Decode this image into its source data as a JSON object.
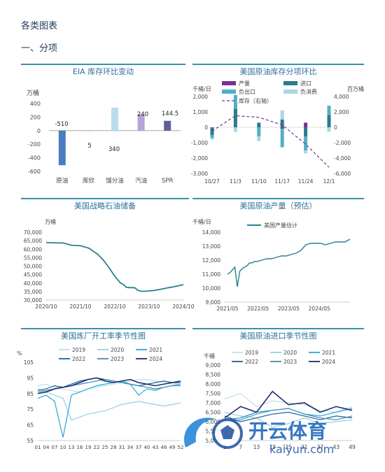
{
  "page": {
    "title": "各类图表",
    "section": "一、分项"
  },
  "colors": {
    "rule": "#3a8fb0",
    "title_text": "#2f6f9a",
    "axis_text": "#444444",
    "grid": "#dddddd"
  },
  "watermark": {
    "text_cn": "开云体育",
    "text_en": "kaiyun.com"
  },
  "chart_data": [
    {
      "id": "eia",
      "type": "bar",
      "title": "EIA 库存环比变动",
      "ylabel": "万桶",
      "ylim": [
        -600,
        400
      ],
      "yticks": [
        -600,
        -400,
        -200,
        0,
        200,
        400
      ],
      "categories": [
        "原油",
        "库欣",
        "馏分油",
        "汽油",
        "SPR"
      ],
      "values": [
        -510,
        5,
        340,
        240,
        144.5
      ],
      "data_labels": [
        "-510",
        "5",
        "340",
        "240",
        "144.5"
      ],
      "colors": [
        "#4a7cc2",
        "#7fb3cf",
        "#b9dced",
        "#b8a4d6",
        "#5f5f9a"
      ]
    },
    {
      "id": "us-crude-inventory",
      "type": "bar",
      "title": "美国原油库存分项环比",
      "ylabel_left": "千桶/日",
      "ylabel_right": "百万桶",
      "ylim": [
        -3000,
        2000
      ],
      "yticks": [
        -3000,
        -2000,
        -1000,
        0,
        1000,
        2000
      ],
      "ylim_right": [
        -6000,
        4000
      ],
      "yticks_right": [
        -6000,
        -4000,
        -2000,
        0,
        2000,
        4000
      ],
      "categories": [
        "10/27",
        "11/3",
        "11/10",
        "11/17",
        "11/24",
        "12/1"
      ],
      "legend": [
        "产量",
        "进口",
        "负出口",
        "负消费",
        "库存（右轴）"
      ],
      "series": [
        {
          "name": "产量",
          "color": "#7b2f8f",
          "values": [
            0,
            0,
            0,
            -100,
            300,
            0
          ]
        },
        {
          "name": "进口",
          "color": "#2c7a8c",
          "values": [
            -500,
            1200,
            300,
            500,
            -600,
            800
          ]
        },
        {
          "name": "负出口",
          "color": "#4fb0c8",
          "values": [
            -200,
            900,
            -600,
            -1200,
            -900,
            600
          ]
        },
        {
          "name": "负消费",
          "color": "#a9d7e6",
          "values": [
            -100,
            -300,
            -300,
            600,
            -200,
            -300
          ]
        }
      ],
      "line": {
        "name": "库存（右轴）",
        "color": "#7a2f9a",
        "values": [
          -500,
          1500,
          1300,
          300,
          -2200,
          -5200
        ]
      }
    },
    {
      "id": "spr",
      "type": "line",
      "title": "美国战略石油储备",
      "ylabel": "万桶",
      "ylim": [
        30000,
        70000
      ],
      "yticks": [
        30000,
        35000,
        40000,
        45000,
        50000,
        55000,
        60000,
        65000,
        70000
      ],
      "xticks": [
        "2020/10",
        "2021/10",
        "2022/10",
        "2023/10",
        "2024/10"
      ],
      "x": [
        0,
        3,
        6,
        9,
        12,
        15,
        18,
        20,
        22,
        24,
        25,
        26,
        27,
        28,
        29,
        30,
        31,
        32,
        33,
        34,
        35,
        36,
        38,
        40,
        42,
        44,
        46,
        48
      ],
      "values": [
        63800,
        63700,
        63600,
        62200,
        62000,
        60500,
        57000,
        53500,
        49000,
        44000,
        42000,
        40000,
        39200,
        37500,
        37300,
        37300,
        37200,
        35800,
        35200,
        35100,
        35200,
        35300,
        35700,
        36300,
        37000,
        37600,
        38300,
        39000
      ],
      "color": "#2a7f8f"
    },
    {
      "id": "production",
      "type": "line",
      "title": "美国原油产量（预估）",
      "ylabel": "千桶/日",
      "ylim": [
        9000,
        14000
      ],
      "yticks": [
        9000,
        10000,
        11000,
        12000,
        13000,
        14000
      ],
      "xticks": [
        "2021/05",
        "2022/05",
        "2023/05",
        "2024/05"
      ],
      "legend": [
        "美国产量估计"
      ],
      "x": [
        0,
        1,
        2,
        3,
        4,
        5,
        6,
        7,
        8,
        9,
        10,
        11,
        12,
        14,
        16,
        18,
        20,
        22,
        24,
        26,
        28,
        30,
        32,
        34,
        36,
        38,
        40,
        42,
        44,
        46,
        48,
        50
      ],
      "values": [
        11000,
        11100,
        11300,
        11500,
        10100,
        11200,
        11400,
        11500,
        11600,
        11800,
        11800,
        11900,
        11900,
        12000,
        12100,
        12100,
        12200,
        12300,
        12300,
        12400,
        12500,
        12700,
        13100,
        13200,
        13200,
        13200,
        13100,
        13200,
        13300,
        13300,
        13300,
        13500
      ],
      "color": "#2a7f8f"
    },
    {
      "id": "refinery",
      "type": "line",
      "title": "美国炼厂开工率季节性图",
      "ylabel": "%",
      "ylim": [
        55,
        105
      ],
      "yticks": [
        55,
        65,
        75,
        85,
        95,
        105
      ],
      "xticks": [
        "01",
        "04",
        "07",
        "10",
        "13",
        "16",
        "19",
        "22",
        "25",
        "28",
        "31",
        "34",
        "37",
        "40",
        "43",
        "46",
        "49",
        "52"
      ],
      "series": [
        {
          "name": "2019",
          "color": "#bfe0ea",
          "values": [
            90,
            91,
            89,
            88,
            87,
            86,
            88,
            89,
            90,
            91,
            92,
            93,
            94,
            94,
            93,
            92,
            91,
            92
          ]
        },
        {
          "name": "2020",
          "color": "#8fd3e0",
          "values": [
            88,
            86,
            84,
            82,
            68,
            70,
            72,
            73,
            74,
            76,
            78,
            79,
            80,
            79,
            78,
            77,
            78,
            79
          ]
        },
        {
          "name": "2021",
          "color": "#2aa7d8",
          "values": [
            82,
            84,
            80,
            57,
            84,
            86,
            88,
            90,
            91,
            92,
            93,
            91,
            84,
            88,
            87,
            89,
            90,
            90
          ]
        },
        {
          "name": "2022",
          "color": "#1f5f9a",
          "values": [
            87,
            88,
            90,
            89,
            91,
            93,
            94,
            95,
            94,
            93,
            92,
            91,
            90,
            91,
            92,
            93,
            92,
            92
          ]
        },
        {
          "name": "2023",
          "color": "#3a8fb0",
          "values": [
            86,
            87,
            88,
            89,
            90,
            91,
            92,
            93,
            94,
            93,
            92,
            91,
            90,
            89,
            88,
            89,
            90,
            91
          ]
        },
        {
          "name": "2024",
          "color": "#1d2d6b",
          "values": [
            85,
            86,
            88,
            89,
            90,
            92,
            94,
            95,
            93,
            92,
            93,
            94,
            92,
            91,
            90,
            91,
            92,
            93
          ]
        }
      ]
    },
    {
      "id": "imports",
      "type": "line",
      "title": "美国原油进口季节性图",
      "ylabel": "千桶",
      "ylim": [
        5000,
        9000
      ],
      "yticks": [
        5000,
        5500,
        6000,
        6500,
        7000,
        7500,
        8000,
        8500,
        9000
      ],
      "xticks": [
        "1",
        "7",
        "13",
        "19",
        "25",
        "31",
        "37",
        "43",
        "49"
      ],
      "series": [
        {
          "name": "2019",
          "color": "#bfe0ea",
          "values": [
            7200,
            7500,
            6800,
            7100,
            7000,
            6900,
            6600,
            6500,
            6800
          ]
        },
        {
          "name": "2020",
          "color": "#8fd3e0",
          "values": [
            6500,
            6300,
            6200,
            5700,
            5900,
            6200,
            5900,
            6000,
            6100
          ]
        },
        {
          "name": "2021",
          "color": "#2aa7d8",
          "values": [
            6000,
            6100,
            6400,
            6600,
            6700,
            6400,
            6300,
            6500,
            6700
          ]
        },
        {
          "name": "2022",
          "color": "#1f5f9a",
          "values": [
            6300,
            6000,
            6200,
            6400,
            6500,
            6300,
            6100,
            6300,
            6200
          ]
        },
        {
          "name": "2023",
          "color": "#3a8fb0",
          "values": [
            6100,
            6200,
            6500,
            6600,
            6700,
            6400,
            6200,
            6100,
            6300
          ]
        },
        {
          "name": "2024",
          "color": "#1d2d6b",
          "values": [
            6200,
            6800,
            6500,
            7600,
            6900,
            7000,
            6500,
            6800,
            6600
          ]
        }
      ]
    }
  ]
}
